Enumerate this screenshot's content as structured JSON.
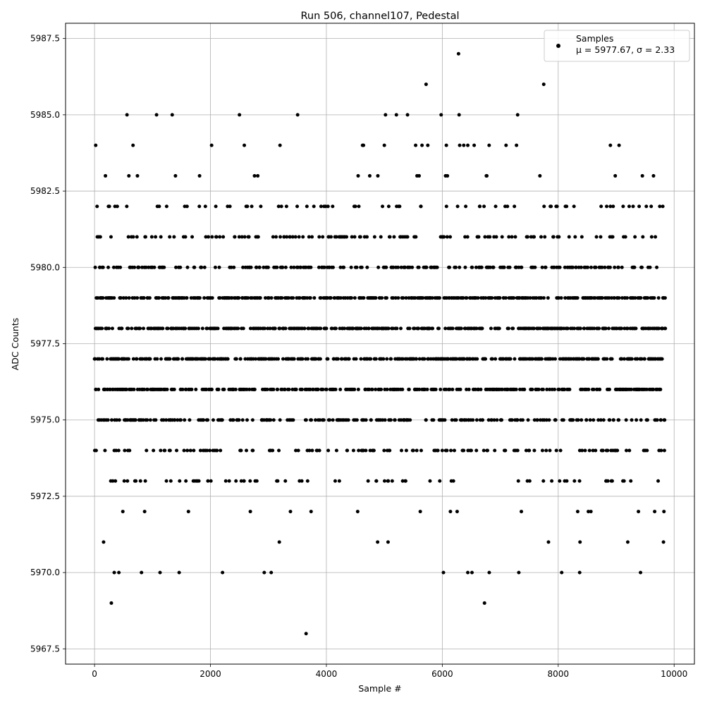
{
  "chart_data": {
    "type": "scatter",
    "title": "Run 506, channel107, Pedestal",
    "xlabel": "Sample #",
    "ylabel": "ADC Counts",
    "xlim": [
      -500,
      10350
    ],
    "ylim": [
      5967.0,
      5988.0
    ],
    "xticks": [
      0,
      2000,
      4000,
      6000,
      8000,
      10000
    ],
    "xtick_labels": [
      "0",
      "2000",
      "4000",
      "6000",
      "8000",
      "10000"
    ],
    "yticks": [
      5967.5,
      5970.0,
      5972.5,
      5975.0,
      5977.5,
      5980.0,
      5982.5,
      5985.0,
      5987.5
    ],
    "ytick_labels": [
      "5967.5",
      "5970.0",
      "5972.5",
      "5975.0",
      "5977.5",
      "5980.0",
      "5982.5",
      "5985.0",
      "5987.5"
    ],
    "grid": true,
    "legend_position": "top-right",
    "series": [
      {
        "name": "Samples",
        "stats_label": "μ = 5977.67, σ = 2.33",
        "color": "#000000",
        "marker": "circle",
        "sample_count": 9850,
        "level_distribution": [
          {
            "level": 5969,
            "approx_fraction": 0.0002
          },
          {
            "level": 5970,
            "approx_fraction": 0.001
          },
          {
            "level": 5971,
            "approx_fraction": 0.003
          },
          {
            "level": 5972,
            "approx_fraction": 0.008
          },
          {
            "level": 5973,
            "approx_fraction": 0.025
          },
          {
            "level": 5974,
            "approx_fraction": 0.055
          },
          {
            "level": 5975,
            "approx_fraction": 0.1
          },
          {
            "level": 5976,
            "approx_fraction": 0.15
          },
          {
            "level": 5977,
            "approx_fraction": 0.17
          },
          {
            "level": 5978,
            "approx_fraction": 0.17
          },
          {
            "level": 5979,
            "approx_fraction": 0.14
          },
          {
            "level": 5980,
            "approx_fraction": 0.09
          },
          {
            "level": 5981,
            "approx_fraction": 0.05
          },
          {
            "level": 5982,
            "approx_fraction": 0.025
          },
          {
            "level": 5983,
            "approx_fraction": 0.008
          },
          {
            "level": 5984,
            "approx_fraction": 0.002
          },
          {
            "level": 5985,
            "approx_fraction": 0.0008
          },
          {
            "level": 5986,
            "approx_fraction": 0.0002
          },
          {
            "level": 5987,
            "approx_fraction": 0.0001
          }
        ],
        "outliers": [
          {
            "x": 290,
            "y": 5969
          },
          {
            "x": 3650,
            "y": 5968
          },
          {
            "x": 6280,
            "y": 5987
          },
          {
            "x": 5720,
            "y": 5986
          },
          {
            "x": 7750,
            "y": 5986
          },
          {
            "x": 560,
            "y": 5985
          },
          {
            "x": 1070,
            "y": 5985
          },
          {
            "x": 1340,
            "y": 5985
          },
          {
            "x": 5020,
            "y": 5985
          },
          {
            "x": 5400,
            "y": 5985
          },
          {
            "x": 5980,
            "y": 5985
          },
          {
            "x": 6290,
            "y": 5985
          },
          {
            "x": 7300,
            "y": 5985
          },
          {
            "x": 20,
            "y": 5984
          },
          {
            "x": 2020,
            "y": 5984
          },
          {
            "x": 3200,
            "y": 5984
          },
          {
            "x": 4640,
            "y": 5984
          },
          {
            "x": 5000,
            "y": 5984
          },
          {
            "x": 5540,
            "y": 5984
          },
          {
            "x": 5650,
            "y": 5984
          },
          {
            "x": 5750,
            "y": 5984
          },
          {
            "x": 6070,
            "y": 5984
          },
          {
            "x": 6300,
            "y": 5984
          },
          {
            "x": 6370,
            "y": 5984
          },
          {
            "x": 6440,
            "y": 5984
          },
          {
            "x": 6550,
            "y": 5984
          },
          {
            "x": 7280,
            "y": 5984
          },
          {
            "x": 8900,
            "y": 5984
          },
          {
            "x": 9050,
            "y": 5984
          },
          {
            "x": 9420,
            "y": 5970
          },
          {
            "x": 8060,
            "y": 5970
          },
          {
            "x": 8370,
            "y": 5970
          },
          {
            "x": 7320,
            "y": 5970
          },
          {
            "x": 6810,
            "y": 5970
          },
          {
            "x": 6440,
            "y": 5970
          },
          {
            "x": 1460,
            "y": 5970
          },
          {
            "x": 1130,
            "y": 5970
          },
          {
            "x": 810,
            "y": 5970
          },
          {
            "x": 420,
            "y": 5970
          },
          {
            "x": 340,
            "y": 5970
          }
        ]
      }
    ]
  }
}
